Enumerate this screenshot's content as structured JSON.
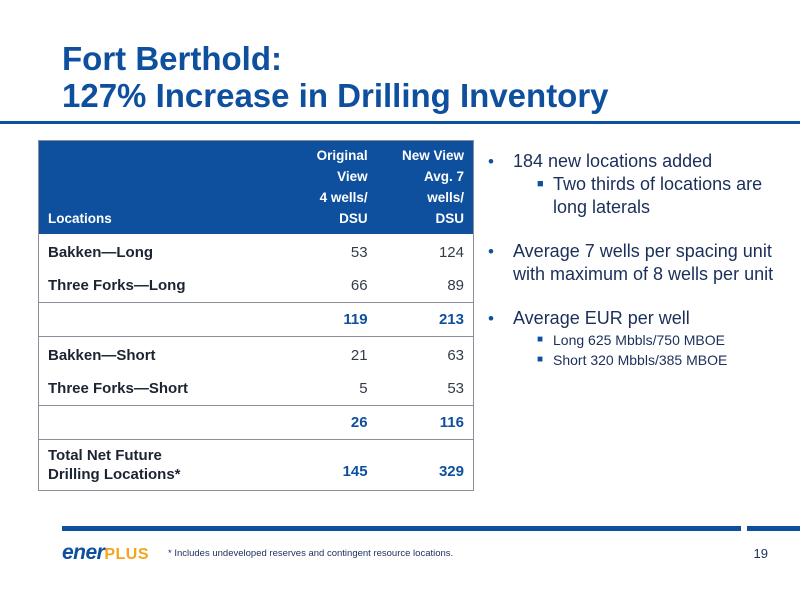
{
  "title": {
    "line1": "Fort Berthold:",
    "line2": "127% Increase in Drilling Inventory"
  },
  "table": {
    "headers": {
      "locations": "Locations",
      "original": [
        "Original View",
        "4 wells/",
        "DSU"
      ],
      "new": [
        "New View",
        "Avg. 7 wells/",
        "DSU"
      ]
    },
    "rows": [
      {
        "type": "data",
        "label": "Bakken—Long",
        "original": "53",
        "new": "124"
      },
      {
        "type": "data",
        "label": "Three Forks—Long",
        "original": "66",
        "new": "89"
      },
      {
        "type": "subtotal",
        "label": "",
        "original": "119",
        "new": "213"
      },
      {
        "type": "data",
        "label": "Bakken—Short",
        "original": "21",
        "new": "63"
      },
      {
        "type": "data",
        "label": "Three Forks—Short",
        "original": "5",
        "new": "53"
      },
      {
        "type": "subtotal",
        "label": "",
        "original": "26",
        "new": "116"
      },
      {
        "type": "total",
        "label_line1": "Total Net Future",
        "label_line2": "Drilling Locations*",
        "original": "145",
        "new": "329"
      }
    ]
  },
  "bullets": [
    {
      "text": "184 new locations added",
      "subs": [
        "Two thirds of locations are long laterals"
      ]
    },
    {
      "text": "Average 7 wells per spacing unit with maximum of 8 wells per unit",
      "subs": []
    },
    {
      "text": "Average EUR per well",
      "subs_small": [
        "Long 625 Mbbls/750 MBOE",
        "Short 320 Mbbls/385 MBOE"
      ]
    }
  ],
  "footer": {
    "logo_ener": "ener",
    "logo_plus": "PLUS",
    "footnote": "* Includes undeveloped reserves and contingent resource locations.",
    "page_number": "19"
  },
  "colors": {
    "brand_blue": "#0e4f9e",
    "logo_orange": "#f5a41b"
  }
}
